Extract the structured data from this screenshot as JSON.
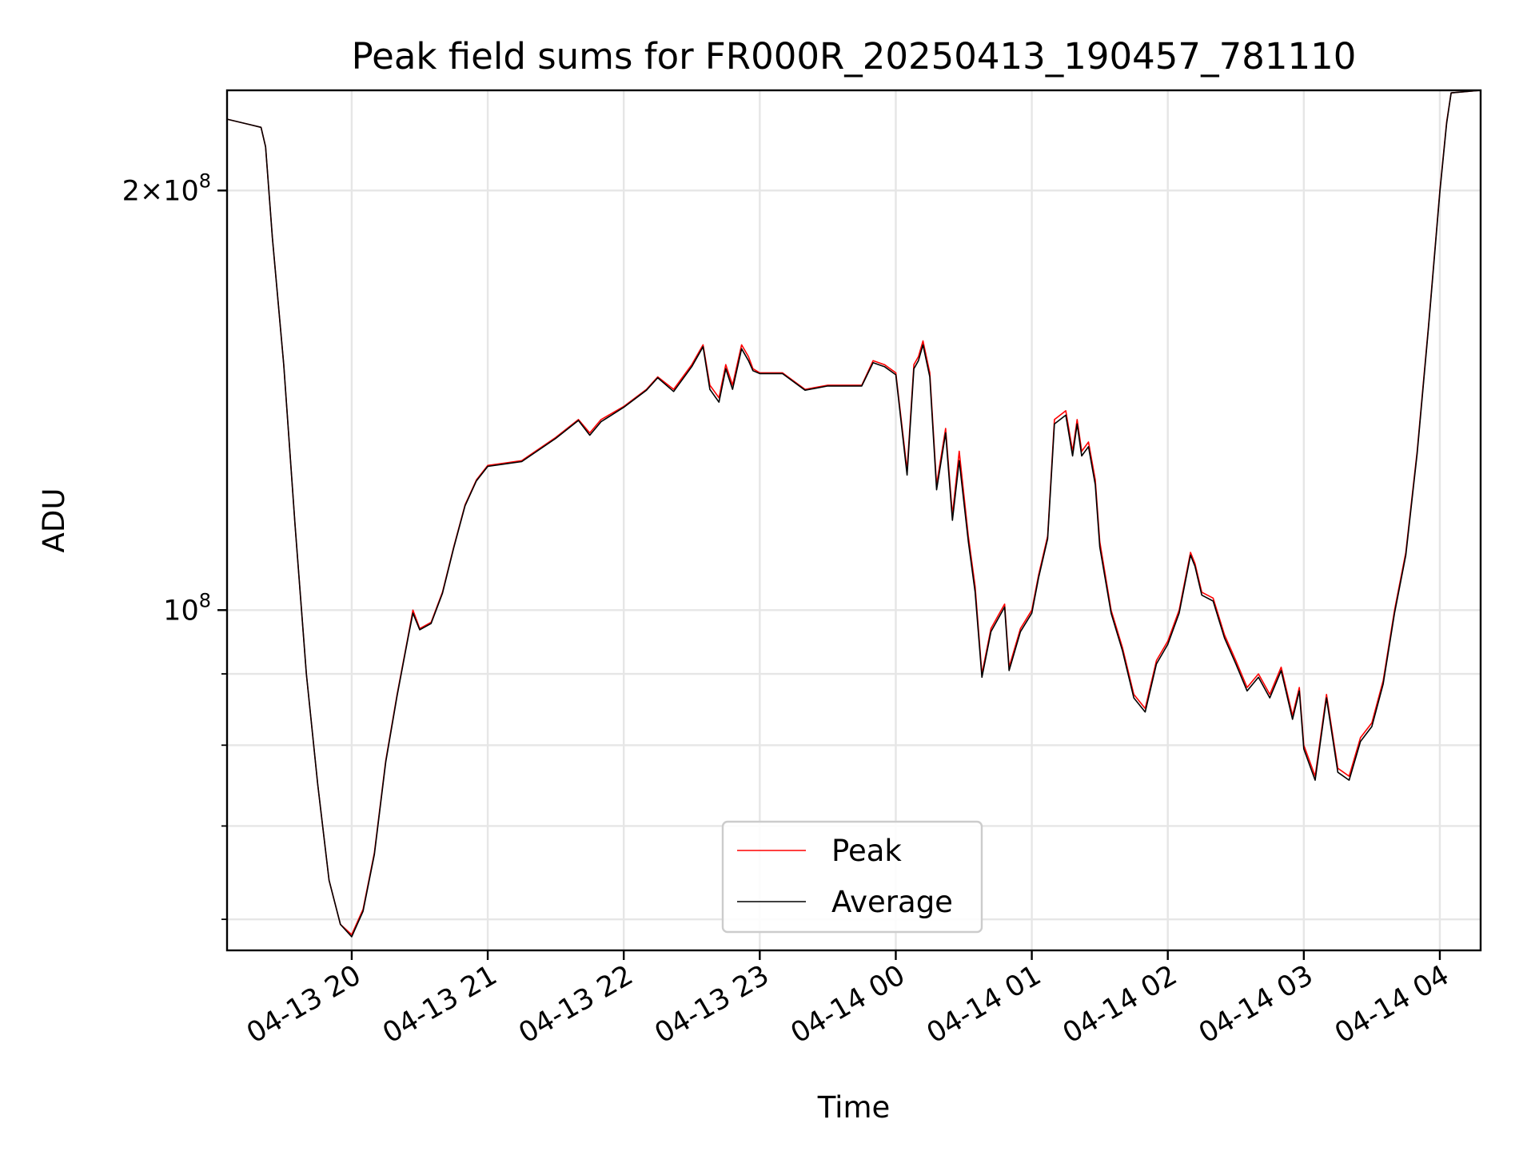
{
  "chart_data": {
    "type": "line",
    "title": "Peak field sums for FR000R_20250413_190457_781110",
    "xlabel": "Time",
    "ylabel": "ADU",
    "yscale": "log",
    "grid": true,
    "legend_position": "lower-center",
    "x_ticks": [
      "04-13 20",
      "04-13 21",
      "04-13 22",
      "04-13 23",
      "04-14 00",
      "04-14 01",
      "04-14 02",
      "04-14 03",
      "04-14 04"
    ],
    "y_tick_labels": [
      {
        "value": 200000000,
        "mantissa": "2",
        "exp": "8"
      },
      {
        "value": 100000000,
        "mantissa": "",
        "exp": "8"
      }
    ],
    "y_minor_ticks": [
      60000000,
      70000000,
      80000000,
      90000000
    ],
    "xlim": [
      "2025-04-13T19:05",
      "2025-04-14T04:18"
    ],
    "ylim": [
      57000000,
      236000000
    ],
    "series": [
      {
        "name": "Peak",
        "color": "#ff0000",
        "x": [
          "2025-04-13T19:05",
          "2025-04-13T19:15",
          "2025-04-13T19:20",
          "2025-04-13T19:22",
          "2025-04-13T19:25",
          "2025-04-13T19:30",
          "2025-04-13T19:35",
          "2025-04-13T19:40",
          "2025-04-13T19:45",
          "2025-04-13T19:50",
          "2025-04-13T19:55",
          "2025-04-13T20:00",
          "2025-04-13T20:05",
          "2025-04-13T20:10",
          "2025-04-13T20:15",
          "2025-04-13T20:20",
          "2025-04-13T20:25",
          "2025-04-13T20:27",
          "2025-04-13T20:30",
          "2025-04-13T20:35",
          "2025-04-13T20:40",
          "2025-04-13T20:45",
          "2025-04-13T20:50",
          "2025-04-13T20:55",
          "2025-04-13T21:00",
          "2025-04-13T21:15",
          "2025-04-13T21:30",
          "2025-04-13T21:40",
          "2025-04-13T21:45",
          "2025-04-13T21:50",
          "2025-04-13T22:00",
          "2025-04-13T22:10",
          "2025-04-13T22:15",
          "2025-04-13T22:22",
          "2025-04-13T22:30",
          "2025-04-13T22:35",
          "2025-04-13T22:38",
          "2025-04-13T22:42",
          "2025-04-13T22:45",
          "2025-04-13T22:48",
          "2025-04-13T22:52",
          "2025-04-13T22:55",
          "2025-04-13T22:57",
          "2025-04-13T23:00",
          "2025-04-13T23:10",
          "2025-04-13T23:20",
          "2025-04-13T23:30",
          "2025-04-13T23:45",
          "2025-04-13T23:50",
          "2025-04-13T23:55",
          "2025-04-14T00:00",
          "2025-04-14T00:05",
          "2025-04-14T00:08",
          "2025-04-14T00:10",
          "2025-04-14T00:12",
          "2025-04-14T00:15",
          "2025-04-14T00:18",
          "2025-04-14T00:22",
          "2025-04-14T00:25",
          "2025-04-14T00:28",
          "2025-04-14T00:32",
          "2025-04-14T00:35",
          "2025-04-14T00:38",
          "2025-04-14T00:42",
          "2025-04-14T00:45",
          "2025-04-14T00:48",
          "2025-04-14T00:50",
          "2025-04-14T00:55",
          "2025-04-14T01:00",
          "2025-04-14T01:03",
          "2025-04-14T01:07",
          "2025-04-14T01:10",
          "2025-04-14T01:15",
          "2025-04-14T01:18",
          "2025-04-14T01:20",
          "2025-04-14T01:22",
          "2025-04-14T01:25",
          "2025-04-14T01:28",
          "2025-04-14T01:30",
          "2025-04-14T01:35",
          "2025-04-14T01:40",
          "2025-04-14T01:45",
          "2025-04-14T01:50",
          "2025-04-14T01:55",
          "2025-04-14T02:00",
          "2025-04-14T02:05",
          "2025-04-14T02:10",
          "2025-04-14T02:12",
          "2025-04-14T02:15",
          "2025-04-14T02:20",
          "2025-04-14T02:25",
          "2025-04-14T02:30",
          "2025-04-14T02:35",
          "2025-04-14T02:40",
          "2025-04-14T02:45",
          "2025-04-14T02:50",
          "2025-04-14T02:55",
          "2025-04-14T02:58",
          "2025-04-14T03:00",
          "2025-04-14T03:05",
          "2025-04-14T03:10",
          "2025-04-14T03:15",
          "2025-04-14T03:20",
          "2025-04-14T03:25",
          "2025-04-14T03:30",
          "2025-04-14T03:35",
          "2025-04-14T03:40",
          "2025-04-14T03:45",
          "2025-04-14T03:50",
          "2025-04-14T03:55",
          "2025-04-14T04:00",
          "2025-04-14T04:03",
          "2025-04-14T04:05",
          "2025-04-14T04:18"
        ],
        "y": [
          225000000,
          223000000,
          222000000,
          215000000,
          185000000,
          150000000,
          115000000,
          90000000,
          75000000,
          64000000,
          59500000,
          58500000,
          61000000,
          67000000,
          78000000,
          87000000,
          96000000,
          100000000,
          97000000,
          98000000,
          103000000,
          111000000,
          119000000,
          124000000,
          127000000,
          128000000,
          133000000,
          137000000,
          134000000,
          137000000,
          140000000,
          144000000,
          147000000,
          144000000,
          150000000,
          155000000,
          145000000,
          142000000,
          150000000,
          145000000,
          155000000,
          152000000,
          149000000,
          148000000,
          148000000,
          144000000,
          145000000,
          145000000,
          151000000,
          150000000,
          148000000,
          126000000,
          150000000,
          152000000,
          156000000,
          148000000,
          123000000,
          135000000,
          117000000,
          130000000,
          113000000,
          104000000,
          90000000,
          97000000,
          99000000,
          101000000,
          91000000,
          97000000,
          100000000,
          106000000,
          113000000,
          137000000,
          139000000,
          130000000,
          137000000,
          130000000,
          132000000,
          124000000,
          112000000,
          100000000,
          94000000,
          87000000,
          85000000,
          92000000,
          95000000,
          100000000,
          110000000,
          108000000,
          103000000,
          102000000,
          96000000,
          92000000,
          88000000,
          90000000,
          87000000,
          91000000,
          84000000,
          88000000,
          80000000,
          76000000,
          87000000,
          77000000,
          76000000,
          81000000,
          83000000,
          89000000,
          100000000,
          110000000,
          130000000,
          160000000,
          200000000,
          224000000,
          235000000,
          236000000
        ]
      },
      {
        "name": "Average",
        "color": "#000000",
        "x": [
          "2025-04-13T19:05",
          "2025-04-13T19:15",
          "2025-04-13T19:20",
          "2025-04-13T19:22",
          "2025-04-13T19:25",
          "2025-04-13T19:30",
          "2025-04-13T19:35",
          "2025-04-13T19:40",
          "2025-04-13T19:45",
          "2025-04-13T19:50",
          "2025-04-13T19:55",
          "2025-04-13T20:00",
          "2025-04-13T20:05",
          "2025-04-13T20:10",
          "2025-04-13T20:15",
          "2025-04-13T20:20",
          "2025-04-13T20:25",
          "2025-04-13T20:27",
          "2025-04-13T20:30",
          "2025-04-13T20:35",
          "2025-04-13T20:40",
          "2025-04-13T20:45",
          "2025-04-13T20:50",
          "2025-04-13T20:55",
          "2025-04-13T21:00",
          "2025-04-13T21:15",
          "2025-04-13T21:30",
          "2025-04-13T21:40",
          "2025-04-13T21:45",
          "2025-04-13T21:50",
          "2025-04-13T22:00",
          "2025-04-13T22:10",
          "2025-04-13T22:15",
          "2025-04-13T22:22",
          "2025-04-13T22:30",
          "2025-04-13T22:35",
          "2025-04-13T22:38",
          "2025-04-13T22:42",
          "2025-04-13T22:45",
          "2025-04-13T22:48",
          "2025-04-13T22:52",
          "2025-04-13T22:55",
          "2025-04-13T22:57",
          "2025-04-13T23:00",
          "2025-04-13T23:10",
          "2025-04-13T23:20",
          "2025-04-13T23:30",
          "2025-04-13T23:45",
          "2025-04-13T23:50",
          "2025-04-13T23:55",
          "2025-04-14T00:00",
          "2025-04-14T00:05",
          "2025-04-14T00:08",
          "2025-04-14T00:10",
          "2025-04-14T00:12",
          "2025-04-14T00:15",
          "2025-04-14T00:18",
          "2025-04-14T00:22",
          "2025-04-14T00:25",
          "2025-04-14T00:28",
          "2025-04-14T00:32",
          "2025-04-14T00:35",
          "2025-04-14T00:38",
          "2025-04-14T00:42",
          "2025-04-14T00:45",
          "2025-04-14T00:48",
          "2025-04-14T00:50",
          "2025-04-14T00:55",
          "2025-04-14T01:00",
          "2025-04-14T01:03",
          "2025-04-14T01:07",
          "2025-04-14T01:10",
          "2025-04-14T01:15",
          "2025-04-14T01:18",
          "2025-04-14T01:20",
          "2025-04-14T01:22",
          "2025-04-14T01:25",
          "2025-04-14T01:28",
          "2025-04-14T01:30",
          "2025-04-14T01:35",
          "2025-04-14T01:40",
          "2025-04-14T01:45",
          "2025-04-14T01:50",
          "2025-04-14T01:55",
          "2025-04-14T02:00",
          "2025-04-14T02:05",
          "2025-04-14T02:10",
          "2025-04-14T02:12",
          "2025-04-14T02:15",
          "2025-04-14T02:20",
          "2025-04-14T02:25",
          "2025-04-14T02:30",
          "2025-04-14T02:35",
          "2025-04-14T02:40",
          "2025-04-14T02:45",
          "2025-04-14T02:50",
          "2025-04-14T02:55",
          "2025-04-14T02:58",
          "2025-04-14T03:00",
          "2025-04-14T03:05",
          "2025-04-14T03:10",
          "2025-04-14T03:15",
          "2025-04-14T03:20",
          "2025-04-14T03:25",
          "2025-04-14T03:30",
          "2025-04-14T03:35",
          "2025-04-14T03:40",
          "2025-04-14T03:45",
          "2025-04-14T03:50",
          "2025-04-14T03:55",
          "2025-04-14T04:00",
          "2025-04-14T04:03",
          "2025-04-14T04:05",
          "2025-04-14T04:18"
        ],
        "y": [
          225000000,
          223000000,
          222000000,
          215000000,
          185000000,
          150000000,
          115000000,
          90000000,
          75000000,
          64000000,
          59500000,
          58300000,
          60800000,
          66800000,
          77800000,
          86800000,
          95800000,
          99500000,
          96800000,
          97800000,
          102800000,
          110800000,
          118800000,
          123800000,
          126800000,
          127800000,
          132800000,
          136800000,
          133500000,
          136500000,
          139800000,
          143800000,
          146800000,
          143500000,
          149500000,
          154500000,
          144000000,
          141000000,
          149000000,
          144000000,
          154000000,
          151000000,
          148500000,
          147800000,
          147800000,
          143800000,
          144800000,
          144800000,
          150500000,
          149500000,
          147500000,
          125000000,
          149000000,
          151000000,
          155000000,
          147000000,
          122000000,
          134000000,
          116000000,
          128000000,
          112000000,
          103000000,
          89500000,
          96500000,
          98500000,
          100500000,
          90500000,
          96500000,
          99500000,
          105500000,
          112500000,
          136000000,
          138000000,
          129000000,
          136000000,
          129000000,
          131000000,
          123000000,
          111000000,
          99500000,
          93500000,
          86500000,
          84500000,
          91500000,
          94500000,
          99500000,
          109500000,
          107500000,
          102500000,
          101500000,
          95500000,
          91500000,
          87500000,
          89500000,
          86500000,
          90500000,
          83500000,
          87500000,
          79500000,
          75500000,
          86500000,
          76500000,
          75500000,
          80500000,
          82500000,
          88500000,
          99500000,
          109500000,
          129500000,
          159500000,
          199500000,
          223500000,
          235000000,
          236000000
        ]
      }
    ]
  }
}
